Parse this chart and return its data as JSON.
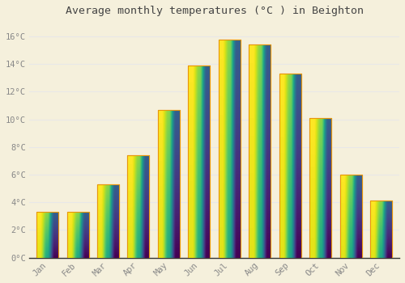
{
  "title": "Average monthly temperatures (°C ) in Beighton",
  "months": [
    "Jan",
    "Feb",
    "Mar",
    "Apr",
    "May",
    "Jun",
    "Jul",
    "Aug",
    "Sep",
    "Oct",
    "Nov",
    "Dec"
  ],
  "temperatures": [
    3.3,
    3.3,
    5.3,
    7.4,
    10.7,
    13.9,
    15.8,
    15.4,
    13.3,
    10.1,
    6.0,
    4.1
  ],
  "bar_color_bottom": "#F5A623",
  "bar_color_top": "#FFD966",
  "bar_edge_color": "#E8960A",
  "background_color": "#F5F0DC",
  "grid_color": "#E8E8E8",
  "tick_label_color": "#888888",
  "title_color": "#444444",
  "ylim": [
    0,
    17
  ],
  "yticks": [
    0,
    2,
    4,
    6,
    8,
    10,
    12,
    14,
    16
  ],
  "ytick_labels": [
    "0°C",
    "2°C",
    "4°C",
    "6°C",
    "8°C",
    "10°C",
    "12°C",
    "14°C",
    "16°C"
  ]
}
